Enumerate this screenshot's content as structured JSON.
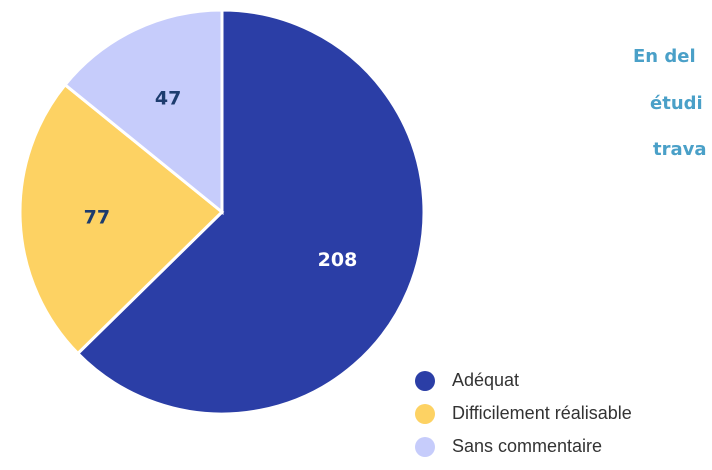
{
  "chart_data": {
    "type": "pie",
    "side_text": [
      "En del",
      "étudi",
      "trava"
    ],
    "categories": [
      "Adéquat",
      "Difficilement réalisable",
      "Sans commentaire"
    ],
    "values": [
      208,
      77,
      47
    ],
    "colors": [
      "#2b3ea6",
      "#fdd263",
      "#c6ccfb"
    ],
    "legend": "bottom-right"
  }
}
